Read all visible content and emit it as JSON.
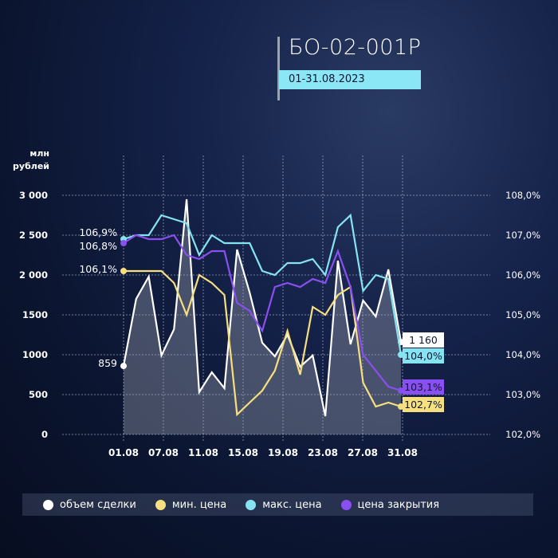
{
  "header": {
    "title": "БО-02-001Р",
    "period": "01-31.08.2023"
  },
  "colors": {
    "volume": "#ffffff",
    "min": "#f5df7e",
    "max": "#86e4f2",
    "close": "#8a4ff0",
    "background": "#0d1833"
  },
  "legend": [
    {
      "label": "объем сделки",
      "color": "#ffffff"
    },
    {
      "label": "мин. цена",
      "color": "#f5df7e"
    },
    {
      "label": "макс. цена",
      "color": "#86e4f2"
    },
    {
      "label": "цена закрытия",
      "color": "#8a4ff0"
    }
  ],
  "chart_data": {
    "type": "line",
    "left_axis": {
      "label": [
        "млн",
        "рублей"
      ],
      "ticks": [
        "0",
        "500",
        "1000",
        "1500",
        "2 000",
        "2 500",
        "3 000"
      ],
      "range": [
        0,
        3000
      ]
    },
    "right_axis": {
      "ticks": [
        "102,0%",
        "103,0%",
        "104,0%",
        "105,0%",
        "106,0%",
        "107,0%",
        "108,0%"
      ],
      "range": [
        102,
        108
      ]
    },
    "x_ticks": [
      "01.08",
      "07.08",
      "11.08",
      "15.08",
      "19.08",
      "23.08",
      "27.08",
      "31.08"
    ],
    "grid": true,
    "legend_position": "bottom",
    "series": [
      {
        "name": "объем сделки",
        "key": "volume",
        "axis": "left",
        "area": true,
        "values": [
          859,
          1700,
          1980,
          990,
          1320,
          2950,
          530,
          780,
          580,
          2320,
          1780,
          1150,
          980,
          1250,
          850,
          990,
          230,
          2180,
          1130,
          1680,
          1480,
          2070,
          1160
        ]
      },
      {
        "name": "мин. цена",
        "key": "min",
        "axis": "right",
        "values": [
          106.1,
          106.1,
          106.1,
          106.1,
          105.8,
          105.0,
          106.0,
          105.8,
          105.5,
          102.5,
          102.8,
          103.1,
          103.6,
          104.6,
          103.5,
          105.2,
          105.0,
          105.5,
          105.7,
          103.3,
          102.7,
          102.8,
          102.7
        ]
      },
      {
        "name": "макс. цена",
        "key": "max",
        "axis": "right",
        "values": [
          106.9,
          107.0,
          107.0,
          107.5,
          107.4,
          107.3,
          106.5,
          107.0,
          106.8,
          106.8,
          106.8,
          106.1,
          106.0,
          106.3,
          106.3,
          106.4,
          106.0,
          107.2,
          107.5,
          105.6,
          106.0,
          105.9,
          104.0
        ]
      },
      {
        "name": "цена закрытия",
        "key": "close",
        "axis": "right",
        "values": [
          106.8,
          107.0,
          106.9,
          106.9,
          107.0,
          106.5,
          106.4,
          106.6,
          106.6,
          105.3,
          105.1,
          104.6,
          105.7,
          105.8,
          105.7,
          105.9,
          105.8,
          106.6,
          105.7,
          104.0,
          103.6,
          103.2,
          103.1
        ]
      }
    ],
    "start_labels": {
      "max": "106,9%",
      "close": "106,8%",
      "min": "106,1%",
      "volume": "859"
    },
    "end_labels": {
      "volume": "1 160",
      "max": "104,0%",
      "close": "103,1%",
      "min": "102,7%"
    }
  }
}
